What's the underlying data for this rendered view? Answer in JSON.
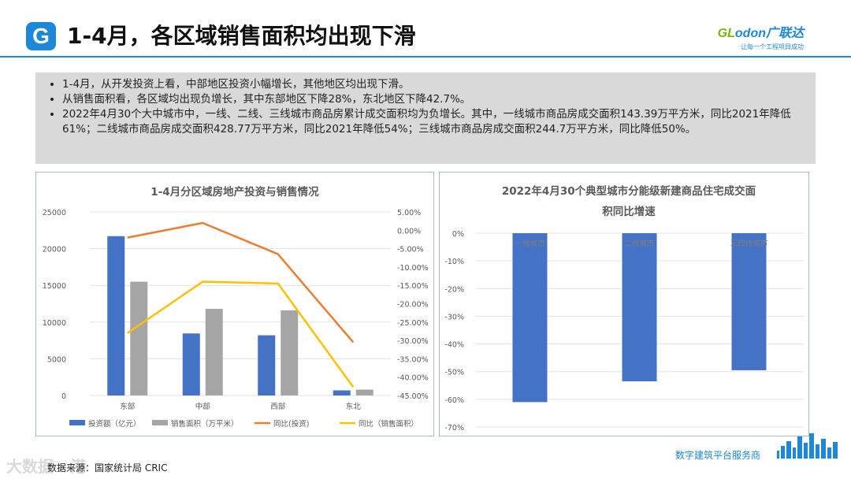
{
  "header": {
    "logo_letter": "G",
    "title": "1-4月，各区域销售面积均出现下滑",
    "brand_name_g": "GL",
    "brand_name_rest": "odon广联达",
    "brand_slogan": "让每一个工程项目成功"
  },
  "summary": {
    "bullets": [
      "1-4月，从开发投资上看，中部地区投资小幅增长，其他地区均出现下滑。",
      "从销售面积看，各区域均出现负增长，其中东部地区下降28%，东北地区下降42.7%。",
      "2022年4月30个大中城市中，一线、二线、三线城市商品房累计成交面积均为负增长。其中，一线城市商品房成交面积143.39万平方米，同比2021年降低61%；二线城市商品房成交面积428.77万平方米，同比2021年降低54%；三线城市商品房成交面积244.7万平方米，同比降低50%。"
    ]
  },
  "footer": {
    "source": "数据来源：国家统计局 CRIC",
    "brand": "数字建筑平台服务商",
    "watermark": "大数据 · 港"
  },
  "colors": {
    "accent": "#1e88d8",
    "bar_blue": "#4472c4",
    "bar_gray": "#a5a5a5",
    "line_orange": "#ed7d31",
    "line_yellow": "#ffc000"
  },
  "chart_data": [
    {
      "type": "bar",
      "title": "1-4月分区域房地产投资与销售情况",
      "categories": [
        "东部",
        "中部",
        "西部",
        "东北"
      ],
      "series": [
        {
          "name": "投资额（亿元）",
          "type": "bar",
          "axis": "left",
          "values": [
            21700,
            8450,
            8200,
            700
          ]
        },
        {
          "name": "销售面积（万平米）",
          "type": "bar",
          "axis": "left",
          "values": [
            15500,
            11800,
            11600,
            800
          ]
        },
        {
          "name": "同比(投资)",
          "type": "line",
          "axis": "right",
          "values": [
            -0.02,
            0.02,
            -0.065,
            -0.305
          ]
        },
        {
          "name": "同比（销售面积）",
          "type": "line",
          "axis": "right",
          "values": [
            -0.28,
            -0.14,
            -0.145,
            -0.427
          ]
        }
      ],
      "ylim_left": [
        0,
        25000
      ],
      "yticks_left": [
        "0",
        "5000",
        "10000",
        "15000",
        "20000",
        "25000"
      ],
      "ylim_right": [
        -0.45,
        0.05
      ],
      "yticks_right": [
        "5.00%",
        "0.00%",
        "-5.00%",
        "-10.00%",
        "-15.00%",
        "-20.00%",
        "-25.00%",
        "-30.00%",
        "-35.00%",
        "-40.00%",
        "-45.00%"
      ],
      "legend_position": "bottom",
      "grid": true
    },
    {
      "type": "bar",
      "title": "2022年4月30个典型城市分能级新建商品住宅成交面积同比增速",
      "title_lines": [
        "2022年4月30个典型城市分能级新建商品住宅成交面",
        "积同比增速"
      ],
      "categories": [
        "一线城市",
        "二线城市",
        "三四线城市"
      ],
      "values": [
        -61,
        -53.5,
        -49.5
      ],
      "ylim": [
        -70,
        0
      ],
      "yticks": [
        "0%",
        "-10%",
        "-20%",
        "-30%",
        "-40%",
        "-50%",
        "-60%",
        "-70%"
      ],
      "grid": true
    }
  ]
}
